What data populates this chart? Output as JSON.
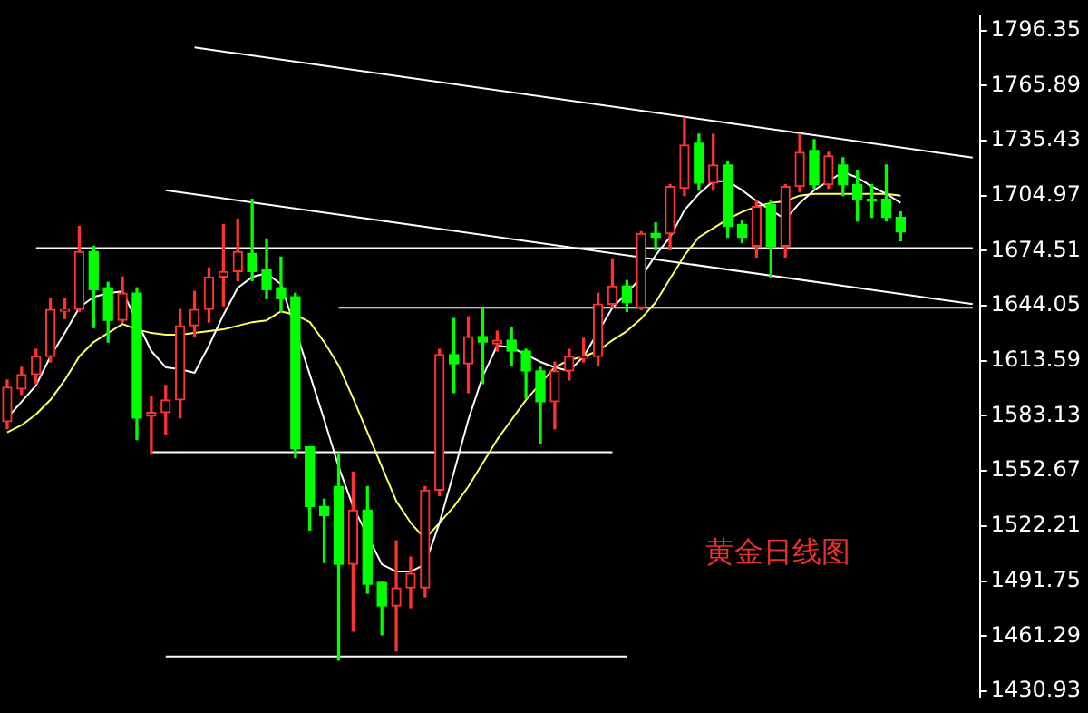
{
  "chart_data": {
    "type": "candlestick",
    "categories": [
      null,
      null,
      null,
      null,
      null,
      null,
      null,
      null,
      null,
      null,
      null,
      null,
      null,
      null,
      null,
      null,
      null,
      null,
      null,
      null,
      null,
      null,
      null,
      null,
      null,
      null,
      null,
      null,
      null,
      null,
      null,
      null,
      null,
      null,
      null,
      null,
      null,
      null,
      null,
      null,
      null,
      null,
      null,
      null,
      null,
      null,
      null,
      null,
      null,
      null,
      null,
      null,
      null,
      null,
      null,
      null,
      null,
      null,
      null,
      null,
      null,
      null,
      null,
      null,
      null,
      null,
      null,
      null
    ],
    "ohlc": [
      [
        1580,
        1603,
        1576,
        1599
      ],
      [
        1598,
        1610,
        1595,
        1606
      ],
      [
        1606,
        1620,
        1601,
        1616
      ],
      [
        1616,
        1648,
        1613,
        1642
      ],
      [
        1641,
        1648,
        1637,
        1642
      ],
      [
        1642,
        1688,
        1641,
        1674
      ],
      [
        1674,
        1677,
        1632,
        1653
      ],
      [
        1654,
        1657,
        1624,
        1636
      ],
      [
        1636,
        1660,
        1635,
        1651
      ],
      [
        1651,
        1654,
        1570,
        1582
      ],
      [
        1583,
        1594,
        1562,
        1585
      ],
      [
        1585,
        1600,
        1573,
        1592
      ],
      [
        1592,
        1642,
        1582,
        1633
      ],
      [
        1633,
        1652,
        1627,
        1642
      ],
      [
        1642,
        1665,
        1635,
        1660
      ],
      [
        1660,
        1689,
        1644,
        1663
      ],
      [
        1663,
        1692,
        1658,
        1674
      ],
      [
        1673,
        1703,
        1658,
        1663
      ],
      [
        1664,
        1681,
        1648,
        1653
      ],
      [
        1654,
        1671,
        1641,
        1648
      ],
      [
        1649,
        1651,
        1560,
        1565
      ],
      [
        1566,
        1566,
        1520,
        1533
      ],
      [
        1533,
        1537,
        1502,
        1528
      ],
      [
        1544,
        1562,
        1448,
        1501
      ],
      [
        1501,
        1552,
        1464,
        1531
      ],
      [
        1531,
        1544,
        1485,
        1490
      ],
      [
        1491,
        1491,
        1462,
        1478
      ],
      [
        1478,
        1514,
        1453,
        1488
      ],
      [
        1488,
        1505,
        1477,
        1496
      ],
      [
        1488,
        1544,
        1483,
        1542
      ],
      [
        1542,
        1620,
        1539,
        1617
      ],
      [
        1617,
        1637,
        1596,
        1612
      ],
      [
        1612,
        1638,
        1596,
        1627
      ],
      [
        1627,
        1643,
        1601,
        1624
      ],
      [
        1623,
        1630,
        1619,
        1625
      ],
      [
        1625,
        1632,
        1611,
        1619
      ],
      [
        1619,
        1620,
        1593,
        1608
      ],
      [
        1608,
        1610,
        1568,
        1591
      ],
      [
        1591,
        1613,
        1576,
        1608
      ],
      [
        1608,
        1620,
        1603,
        1616
      ],
      [
        1615,
        1626,
        1613,
        1616
      ],
      [
        1616,
        1651,
        1611,
        1645
      ],
      [
        1645,
        1670,
        1643,
        1655
      ],
      [
        1655,
        1658,
        1641,
        1646
      ],
      [
        1643,
        1685,
        1642,
        1684
      ],
      [
        1684,
        1690,
        1675,
        1682
      ],
      [
        1684,
        1711,
        1675,
        1710
      ],
      [
        1709,
        1748,
        1705,
        1733
      ],
      [
        1734,
        1739,
        1708,
        1712
      ],
      [
        1712,
        1739,
        1708,
        1722
      ],
      [
        1722,
        1724,
        1682,
        1688
      ],
      [
        1689,
        1691,
        1679,
        1682
      ],
      [
        1677,
        1702,
        1671,
        1699
      ],
      [
        1700,
        1702,
        1660,
        1677
      ],
      [
        1677,
        1711,
        1671,
        1710
      ],
      [
        1710,
        1739,
        1707,
        1729
      ],
      [
        1730,
        1736,
        1709,
        1711
      ],
      [
        1711,
        1729,
        1709,
        1727
      ],
      [
        1722,
        1726,
        1705,
        1711
      ],
      [
        1711,
        1719,
        1691,
        1703
      ],
      [
        1703,
        1711,
        1693,
        1702
      ],
      [
        1703,
        1722,
        1691,
        1693
      ],
      [
        1693,
        1696,
        1680,
        1685
      ],
      null,
      null,
      null,
      null,
      null
    ],
    "colors": [
      "#ff3232",
      "#ff3232",
      "#ff3232",
      "#ff3232",
      "#ff3232",
      "#ff3232",
      "#00ff00",
      "#00ff00",
      "#ff3232",
      "#00ff00",
      "#ff3232",
      "#ff3232",
      "#ff3232",
      "#ff3232",
      "#ff3232",
      "#ff3232",
      "#ff3232",
      "#00ff00",
      "#00ff00",
      "#00ff00",
      "#00ff00",
      "#00ff00",
      "#00ff00",
      "#00ff00",
      "#ff3232",
      "#00ff00",
      "#00ff00",
      "#ff3232",
      "#ff3232",
      "#ff3232",
      "#ff3232",
      "#00ff00",
      "#ff3232",
      "#00ff00",
      "#ff3232",
      "#00ff00",
      "#00ff00",
      "#00ff00",
      "#ff3232",
      "#ff3232",
      "#ff3232",
      "#ff3232",
      "#ff3232",
      "#00ff00",
      "#ff3232",
      "#00ff00",
      "#ff3232",
      "#ff3232",
      "#00ff00",
      "#ff3232",
      "#00ff00",
      "#00ff00",
      "#ff3232",
      "#00ff00",
      "#ff3232",
      "#ff3232",
      "#00ff00",
      "#ff3232",
      "#00ff00",
      "#00ff00",
      "#00ff00",
      "#00ff00",
      "#00ff00",
      null,
      null,
      null,
      null,
      null
    ],
    "series": [
      {
        "type": "line",
        "color": "#ffffff",
        "values": [
          1582,
          1591,
          1600,
          1616,
          1629,
          1643,
          1649,
          1651,
          1652,
          null,
          1619,
          1610,
          1609,
          1607,
          1622,
          1639,
          1654,
          1660,
          1662,
          1656,
          null,
          1606,
          1581,
          1555,
          1533,
          null,
          1501,
          1497,
          1497,
          1501,
          1524,
          1552,
          1581,
          1605,
          1622,
          1621,
          1617,
          1613,
          1610,
          1608,
          1616,
          null,
          1643,
          1651,
          1660,
          1672,
          1682,
          1697,
          1706,
          1713,
          1713,
          1708,
          1702,
          1697,
          1692,
          1701,
          1708,
          1713,
          1718,
          1715,
          1710,
          1706,
          1701,
          null,
          null,
          null,
          null,
          null
        ]
      },
      {
        "type": "line",
        "color": "#ffff66",
        "values": [
          1574,
          1578,
          1584,
          1592,
          1603,
          1616,
          1624,
          1629,
          1634,
          1631,
          1629,
          1628,
          1628,
          1629,
          1630,
          1631,
          1633,
          1635,
          1636,
          1641,
          1639,
          1635,
          1624,
          1611,
          1593,
          1574,
          1555,
          1536,
          1524,
          1515,
          1524,
          1533,
          1544,
          1557,
          1570,
          1581,
          1592,
          1601,
          1610,
          1614,
          1616,
          1619,
          1625,
          1630,
          1637,
          1646,
          1659,
          1672,
          1682,
          1687,
          1692,
          1696,
          1699,
          1701,
          1702,
          1705,
          1706,
          1706,
          1706,
          1706,
          1706,
          1706,
          1705,
          null,
          null,
          null,
          null,
          null
        ]
      },
      {
        "type": "line",
        "color": "#ffffff",
        "values": [
          null,
          null,
          null,
          null,
          null,
          null,
          null,
          null,
          null,
          null,
          null,
          null,
          null,
          1787,
          null,
          null,
          null,
          null,
          null,
          null,
          null,
          null,
          null,
          null,
          null,
          null,
          null,
          null,
          null,
          null,
          null,
          null,
          null,
          null,
          null,
          null,
          null,
          null,
          null,
          null,
          null,
          null,
          null,
          null,
          null,
          null,
          null,
          null,
          null,
          null,
          null,
          null,
          null,
          null,
          null,
          null,
          null,
          null,
          null,
          null,
          null,
          null,
          null,
          null,
          null,
          null,
          null,
          1726
        ]
      },
      {
        "type": "line",
        "color": "#ffffff",
        "values": [
          null,
          null,
          null,
          null,
          null,
          null,
          null,
          null,
          null,
          null,
          null,
          1708,
          null,
          null,
          null,
          null,
          null,
          null,
          null,
          null,
          null,
          null,
          null,
          null,
          null,
          null,
          null,
          null,
          null,
          null,
          null,
          null,
          null,
          null,
          null,
          null,
          null,
          null,
          null,
          null,
          null,
          null,
          null,
          null,
          null,
          null,
          null,
          null,
          null,
          null,
          null,
          null,
          null,
          null,
          null,
          null,
          null,
          null,
          null,
          null,
          null,
          null,
          null,
          null,
          null,
          null,
          null,
          1645
        ]
      },
      {
        "type": "line",
        "color": "#ffffff",
        "values": [
          null,
          null,
          1676,
          null,
          null,
          null,
          null,
          null,
          null,
          null,
          null,
          null,
          null,
          null,
          null,
          null,
          null,
          null,
          null,
          null,
          null,
          null,
          null,
          null,
          null,
          null,
          null,
          null,
          null,
          null,
          null,
          null,
          null,
          null,
          null,
          null,
          null,
          null,
          null,
          null,
          null,
          null,
          null,
          null,
          null,
          null,
          null,
          null,
          null,
          null,
          null,
          null,
          null,
          null,
          null,
          null,
          null,
          null,
          null,
          null,
          null,
          null,
          null,
          null,
          null,
          null,
          null,
          1676
        ]
      },
      {
        "type": "line",
        "color": "#ffffff",
        "values": [
          null,
          null,
          null,
          null,
          null,
          null,
          null,
          null,
          null,
          null,
          null,
          null,
          null,
          null,
          null,
          null,
          null,
          null,
          null,
          null,
          null,
          null,
          null,
          1643,
          null,
          null,
          null,
          null,
          null,
          null,
          null,
          null,
          null,
          null,
          null,
          null,
          null,
          null,
          null,
          null,
          null,
          null,
          null,
          null,
          null,
          null,
          null,
          null,
          null,
          null,
          null,
          null,
          null,
          null,
          null,
          null,
          null,
          null,
          null,
          null,
          null,
          null,
          null,
          null,
          null,
          null,
          null,
          1643
        ]
      },
      {
        "type": "line",
        "color": "#ffffff",
        "values": [
          null,
          null,
          null,
          null,
          null,
          null,
          null,
          null,
          null,
          null,
          1563,
          null,
          null,
          null,
          null,
          null,
          null,
          null,
          null,
          null,
          null,
          null,
          null,
          null,
          null,
          null,
          null,
          null,
          null,
          null,
          null,
          null,
          null,
          null,
          null,
          null,
          null,
          null,
          null,
          null,
          null,
          null,
          1563,
          null,
          null,
          null,
          null,
          null,
          null,
          null,
          null,
          null,
          null,
          null,
          null,
          null,
          null,
          null,
          null,
          null,
          null,
          null,
          null,
          null,
          null,
          null,
          null,
          null
        ]
      },
      {
        "type": "line",
        "color": "#ffffff",
        "values": [
          null,
          null,
          null,
          null,
          null,
          null,
          null,
          null,
          null,
          null,
          null,
          1450,
          null,
          null,
          null,
          null,
          null,
          null,
          null,
          null,
          null,
          null,
          null,
          null,
          null,
          null,
          null,
          null,
          null,
          null,
          null,
          null,
          null,
          null,
          null,
          null,
          null,
          null,
          null,
          null,
          null,
          null,
          null,
          1450,
          null,
          null,
          null,
          null,
          null,
          null,
          null,
          null,
          null,
          null,
          null,
          null,
          null,
          null,
          null,
          null,
          null,
          null,
          null,
          null,
          null,
          null,
          null,
          null
        ]
      }
    ],
    "ylim": [
      1428,
      1804
    ],
    "yticks": [
      1796.35,
      1765.89,
      1735.43,
      1704.97,
      1674.51,
      1644.05,
      1613.59,
      1583.13,
      1552.67,
      1522.21,
      1491.75,
      1461.29,
      1430.93
    ],
    "annotations": [
      "黄金日线图"
    ],
    "grid": false,
    "legend": false,
    "marker": "none",
    "tick_labels": "y"
  }
}
